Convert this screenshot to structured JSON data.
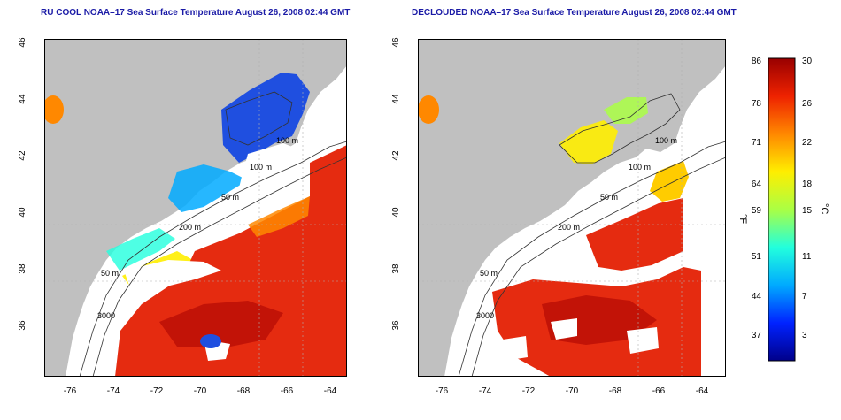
{
  "left_panel": {
    "title": "RU COOL NOAA–17 Sea Surface Temperature August 26, 2008 02:44 GMT"
  },
  "right_panel": {
    "title": "DECLOUDED NOAA–17 Sea Surface Temperature August 26, 2008 02:44 GMT"
  },
  "axes": {
    "x_ticks": [
      "-76",
      "-74",
      "-72",
      "-70",
      "-68",
      "-66",
      "-64"
    ],
    "y_ticks": [
      "46",
      "44",
      "42",
      "40",
      "38",
      "36"
    ]
  },
  "contour_labels": {
    "left": [
      "100 m",
      "100 m",
      "50 m",
      "200 m",
      "50 m",
      "3000"
    ],
    "right": [
      "100 m",
      "100 m",
      "50 m",
      "200 m",
      "50 m",
      "3000"
    ]
  },
  "colorbar": {
    "fahrenheit_ticks": [
      "86",
      "78",
      "71",
      "64",
      "59",
      "51",
      "44",
      "37"
    ],
    "celsius_ticks": [
      "30",
      "26",
      "22",
      "18",
      "15",
      "11",
      "7",
      "3"
    ],
    "fahrenheit_unit": "°F",
    "celsius_unit": "°C",
    "colors": [
      "#00008a",
      "#0022ff",
      "#00aaff",
      "#22ffdd",
      "#aaff44",
      "#ffee00",
      "#ff8800",
      "#ee2200",
      "#990000"
    ]
  },
  "colors": {
    "land": "#c0c0c0",
    "ocean_no_data": "#ffffff",
    "title_text": "#1a1aa6",
    "grid": "#b0b0b0"
  }
}
